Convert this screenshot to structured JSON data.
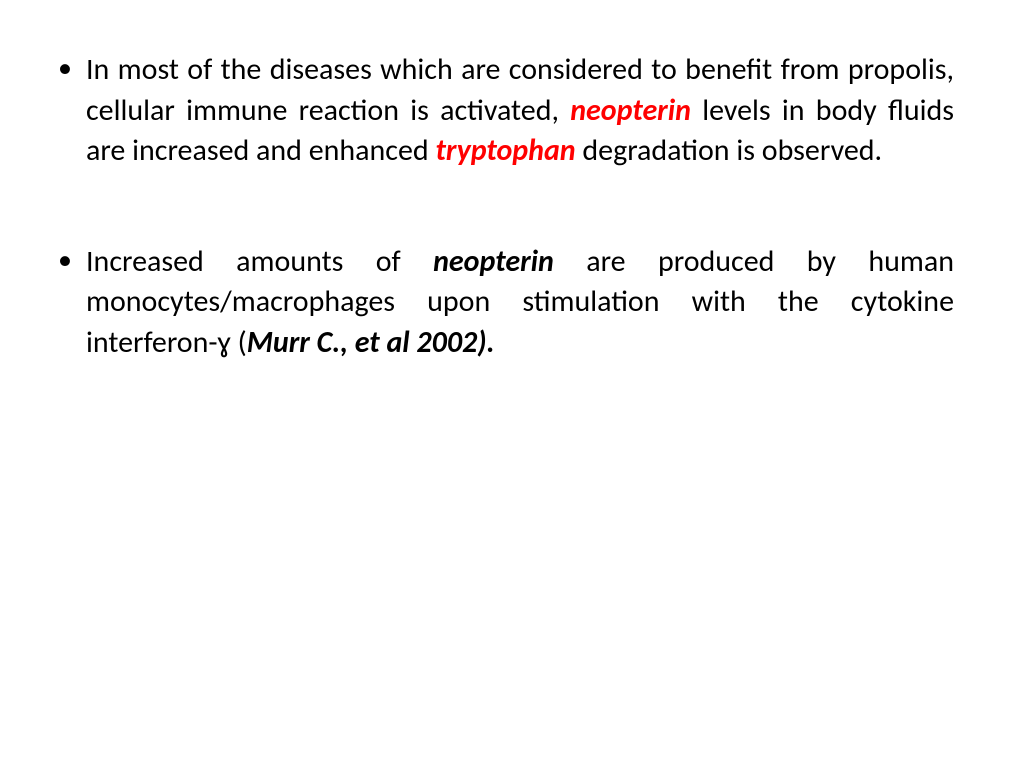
{
  "slide": {
    "bullets": [
      {
        "runs": [
          {
            "t": "In most of the diseases which are considered to benefit from propolis, cellular immune reaction is activated, "
          },
          {
            "t": "neopterin",
            "red": true,
            "bold": true,
            "ital": true
          },
          {
            "t": " levels in body fluids are increased and enhanced "
          },
          {
            "t": "tryptophan",
            "red": true,
            "bold": true,
            "ital": true
          },
          {
            "t": " degradation is observed."
          }
        ]
      },
      {
        "runs": [
          {
            "t": "Increased amounts of "
          },
          {
            "t": "neopterin",
            "bold": true,
            "ital": true
          },
          {
            "t": " are produced by human monocytes/macrophages upon stimulation with the cytokine interferon-ɣ ("
          },
          {
            "t": "Murr C., et al 2002).",
            "bold": true,
            "ital": true
          }
        ]
      }
    ]
  },
  "style": {
    "text_color": "#000000",
    "highlight_color": "#ff0000",
    "background_color": "#ffffff",
    "font_size_pt": 30,
    "line_height": 1.35,
    "font_family": "Calibri"
  }
}
